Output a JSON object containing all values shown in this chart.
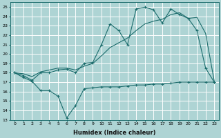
{
  "xlabel": "Humidex (Indice chaleur)",
  "ylabel": "",
  "bg_color": "#aed4d4",
  "grid_color": "#ffffff",
  "line_color": "#1a6b6b",
  "xlim": [
    -0.5,
    23.5
  ],
  "ylim": [
    13,
    25.5
  ],
  "yticks": [
    13,
    14,
    15,
    16,
    17,
    18,
    19,
    20,
    21,
    22,
    23,
    24,
    25
  ],
  "xticks": [
    0,
    1,
    2,
    3,
    4,
    5,
    6,
    7,
    8,
    9,
    10,
    11,
    12,
    13,
    14,
    15,
    16,
    17,
    18,
    19,
    20,
    21,
    22,
    23
  ],
  "series1_x": [
    0,
    1,
    2,
    3,
    4,
    5,
    6,
    7,
    8,
    9,
    10,
    11,
    12,
    13,
    14,
    15,
    16,
    17,
    18,
    19,
    20,
    21,
    22,
    23
  ],
  "series1_y": [
    18.0,
    17.5,
    17.1,
    16.1,
    16.1,
    15.5,
    13.2,
    14.5,
    16.3,
    16.4,
    16.5,
    16.5,
    16.5,
    16.6,
    16.7,
    16.7,
    16.8,
    16.8,
    16.9,
    17.0,
    17.0,
    17.0,
    17.0,
    17.0
  ],
  "series2_x": [
    0,
    1,
    2,
    3,
    4,
    5,
    6,
    7,
    8,
    9,
    10,
    11,
    12,
    13,
    14,
    15,
    16,
    17,
    18,
    19,
    20,
    21,
    22,
    23
  ],
  "series2_y": [
    18.0,
    17.7,
    17.2,
    18.0,
    18.0,
    18.3,
    18.4,
    18.0,
    19.0,
    19.1,
    21.0,
    23.2,
    22.5,
    21.0,
    24.8,
    25.0,
    24.7,
    23.3,
    24.8,
    24.2,
    23.8,
    22.5,
    18.5,
    17.0
  ],
  "series3_x": [
    0,
    1,
    2,
    3,
    4,
    5,
    6,
    7,
    8,
    9,
    10,
    11,
    12,
    13,
    14,
    15,
    16,
    17,
    18,
    19,
    20,
    21,
    22,
    23
  ],
  "series3_y": [
    18.0,
    17.9,
    17.6,
    18.1,
    18.3,
    18.5,
    18.5,
    18.3,
    18.7,
    19.0,
    19.8,
    20.7,
    21.2,
    21.7,
    22.5,
    23.2,
    23.5,
    23.7,
    24.2,
    24.4,
    23.8,
    23.9,
    22.2,
    17.1
  ]
}
